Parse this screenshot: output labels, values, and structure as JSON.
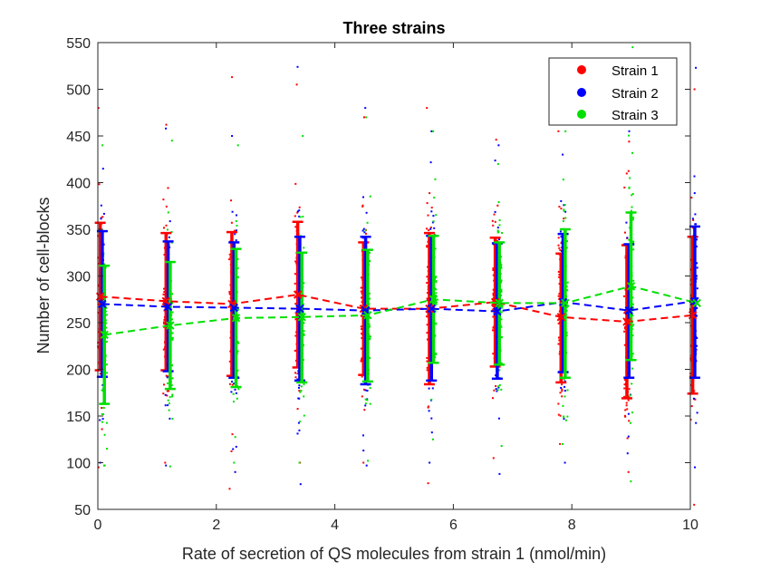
{
  "chart_data": {
    "type": "scatter",
    "title": "Three strains",
    "xlabel": "Rate of secretion of QS molecules from strain 1 (nmol/min)",
    "ylabel": "Number of cell-blocks",
    "xlim": [
      0,
      10
    ],
    "ylim": [
      50,
      550
    ],
    "xticks": [
      0,
      2,
      4,
      6,
      8,
      10
    ],
    "yticks": [
      50,
      100,
      150,
      200,
      250,
      300,
      350,
      400,
      450,
      500,
      550
    ],
    "grid": false,
    "legend_position": "top-right",
    "x": [
      0,
      1.1111,
      2.2222,
      3.3333,
      4.4444,
      5.5556,
      6.6667,
      7.7778,
      8.8889,
      10
    ],
    "series": [
      {
        "name": "Strain 1",
        "color": "#ff0000",
        "mean": [
          278,
          273,
          270,
          280,
          265,
          265,
          272,
          256,
          251,
          258
        ],
        "lower": [
          199,
          199,
          193,
          202,
          194,
          184,
          203,
          186,
          169,
          174
        ],
        "upper": [
          357,
          346,
          347,
          358,
          336,
          346,
          341,
          324,
          333,
          342
        ],
        "min": [
          95,
          100,
          72,
          100,
          100,
          78,
          105,
          120,
          90,
          55
        ],
        "max": [
          480,
          462,
          513,
          505,
          470,
          480,
          446,
          455,
          444,
          500
        ]
      },
      {
        "name": "Strain 2",
        "color": "#0000ff",
        "mean": [
          270,
          267,
          266,
          265,
          263,
          265,
          262,
          272,
          263,
          273
        ],
        "lower": [
          192,
          198,
          191,
          188,
          184,
          188,
          190,
          197,
          191,
          191
        ],
        "upper": [
          348,
          337,
          336,
          342,
          342,
          343,
          335,
          345,
          334,
          353
        ],
        "min": [
          100,
          97,
          90,
          77,
          97,
          100,
          88,
          100,
          110,
          95
        ],
        "max": [
          415,
          458,
          450,
          524,
          480,
          455,
          440,
          430,
          455,
          523
        ]
      },
      {
        "name": "Strain 3",
        "color": "#00e000",
        "mean": [
          237,
          247,
          255,
          256,
          258,
          275,
          271,
          271,
          289,
          271
        ],
        "lower": [
          163,
          179,
          181,
          186,
          187,
          207,
          205,
          191,
          210,
          271
        ],
        "upper": [
          311,
          315,
          329,
          325,
          328,
          343,
          336,
          350,
          368,
          271
        ],
        "min": [
          97,
          96,
          100,
          100,
          102,
          125,
          118,
          120,
          80,
          271
        ],
        "max": [
          440,
          445,
          440,
          450,
          470,
          455,
          420,
          455,
          545,
          271
        ]
      }
    ]
  }
}
